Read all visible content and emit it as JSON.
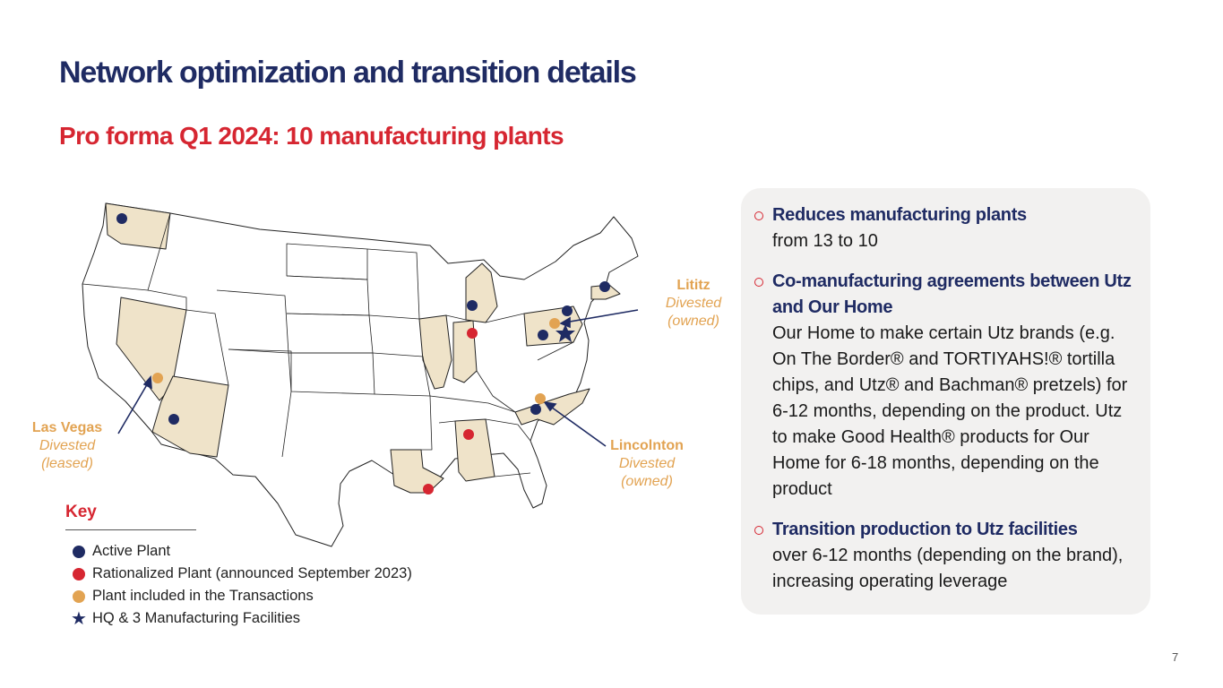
{
  "title": "Network optimization and transition details",
  "subtitle": "Pro forma Q1 2024: 10 manufacturing plants",
  "colors": {
    "navy": "#1f2b63",
    "red": "#d62631",
    "gold": "#e2a352",
    "highlight_state": "#efe3c9",
    "panel_bg": "#f2f1f0"
  },
  "callouts": {
    "lititz": {
      "name": "Lititz",
      "line1": "Divested",
      "line2": "(owned)"
    },
    "las_vegas": {
      "name": "Las Vegas",
      "line1": "Divested",
      "line2": "(leased)"
    },
    "lincolnton": {
      "name": "Lincolnton",
      "line1": "Divested",
      "line2": "(owned)"
    }
  },
  "key": {
    "title": "Key",
    "items": [
      {
        "label": "Active Plant",
        "symbol": "navy-dot"
      },
      {
        "label": "Rationalized Plant (announced September 2023)",
        "symbol": "red-dot"
      },
      {
        "label": "Plant included in the Transactions",
        "symbol": "gold-dot"
      },
      {
        "label": "HQ & 3 Manufacturing Facilities",
        "symbol": "navy-star-icon"
      }
    ]
  },
  "panel": {
    "bullets": [
      {
        "head": "Reduces manufacturing plants",
        "body": "from 13 to 10"
      },
      {
        "head": "Co-manufacturing agreements between Utz and Our Home",
        "body": "Our Home to make certain Utz brands (e.g. On The Border® and TORTIYAHS!® tortilla chips, and Utz® and Bachman® pretzels) for 6-12 months, depending on the product. Utz to make Good Health® products for Our Home for 6-18 months, depending on the product"
      },
      {
        "head": "Transition production to Utz facilities",
        "body": "over 6-12 months (depending on the brand), increasing operating leverage"
      }
    ]
  },
  "page_number": "7"
}
